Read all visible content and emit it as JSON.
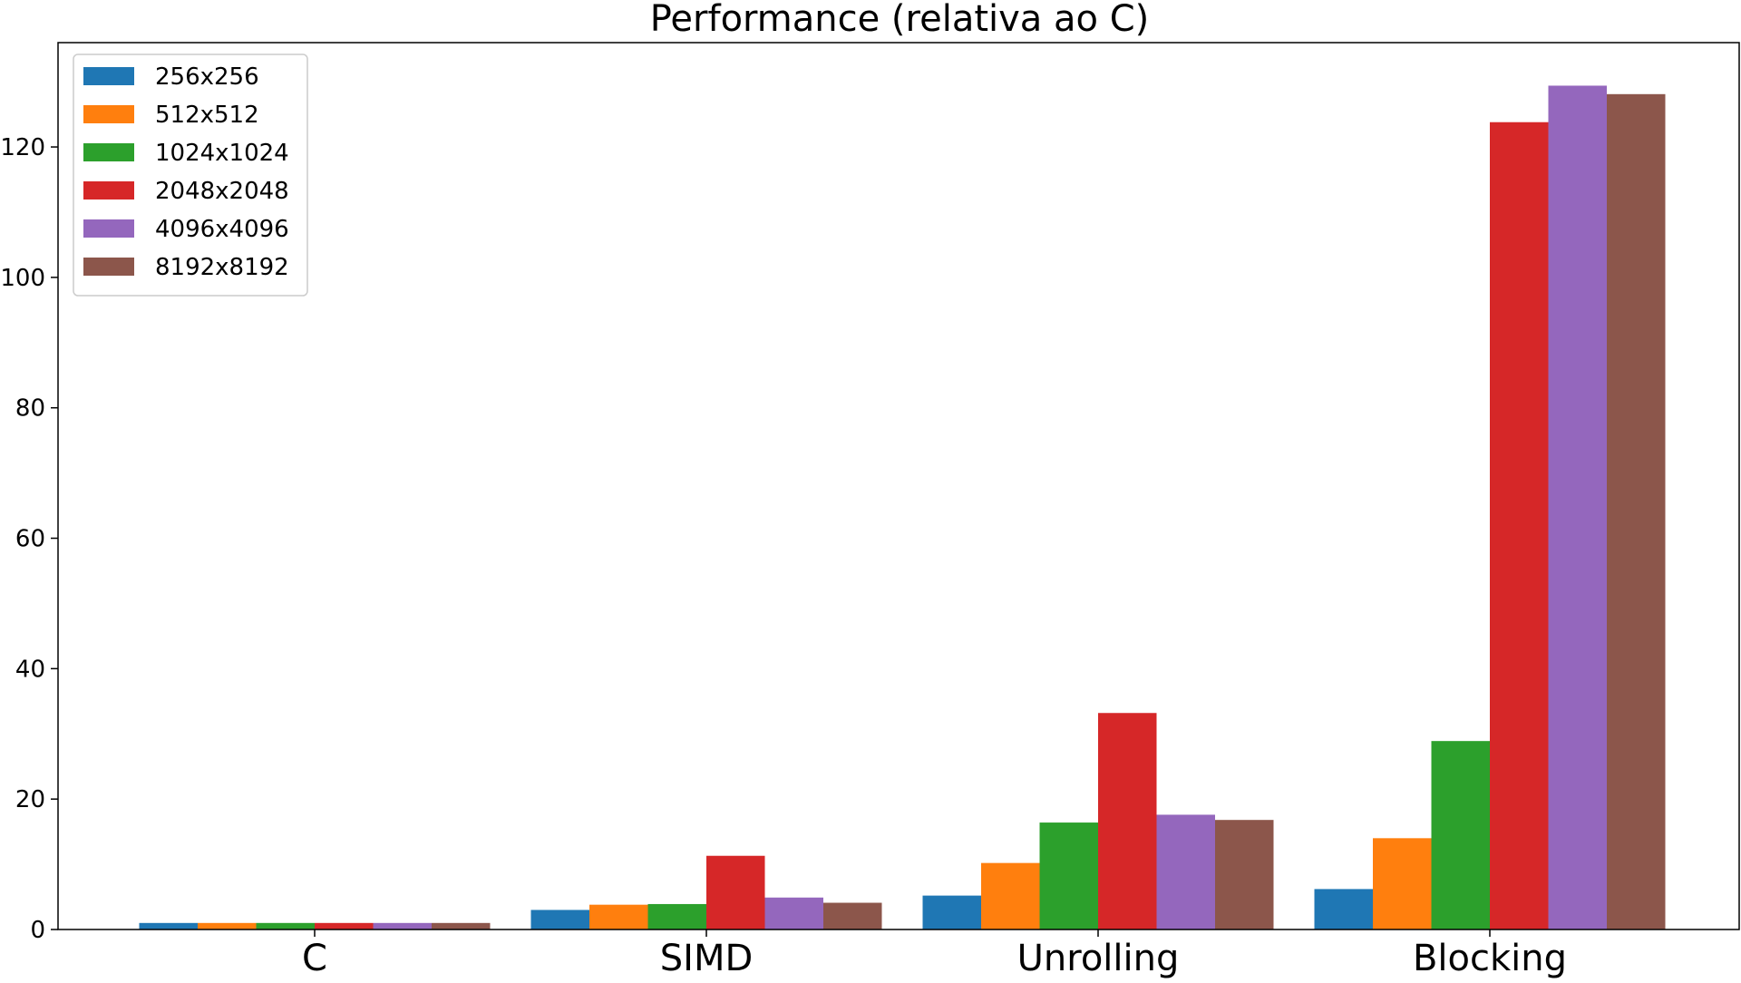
{
  "chart_data": {
    "type": "bar",
    "title": "Performance (relativa ao C)",
    "xlabel": "",
    "ylabel": "",
    "categories": [
      "C",
      "SIMD",
      "Unrolling",
      "Blocking"
    ],
    "ylim": [
      0,
      136
    ],
    "yticks": [
      0,
      20,
      40,
      60,
      80,
      100,
      120
    ],
    "grid": false,
    "legend_position": "top-left",
    "series": [
      {
        "name": "256x256",
        "color": "#1f77b4",
        "values": [
          1,
          3.0,
          5.2,
          6.2
        ]
      },
      {
        "name": "512x512",
        "color": "#ff7f0e",
        "values": [
          1,
          3.8,
          10.2,
          14.0
        ]
      },
      {
        "name": "1024x1024",
        "color": "#2ca02c",
        "values": [
          1,
          3.9,
          16.4,
          28.9
        ]
      },
      {
        "name": "2048x2048",
        "color": "#d62728",
        "values": [
          1,
          11.3,
          33.2,
          123.8
        ]
      },
      {
        "name": "4096x4096",
        "color": "#9467bd",
        "values": [
          1,
          4.9,
          17.6,
          129.4
        ]
      },
      {
        "name": "8192x8192",
        "color": "#8c564b",
        "values": [
          1,
          4.1,
          16.8,
          128.1
        ]
      }
    ]
  }
}
